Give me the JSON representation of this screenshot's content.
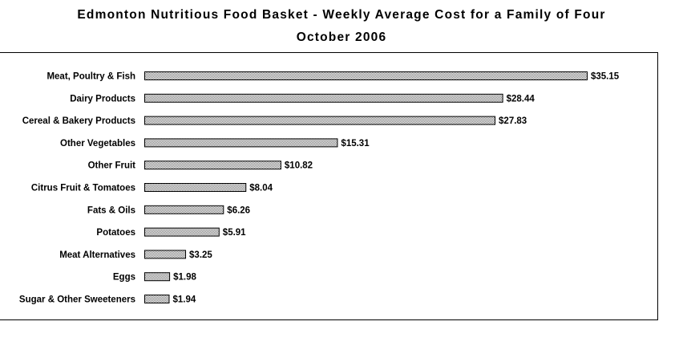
{
  "chart_data": {
    "type": "bar",
    "orientation": "horizontal",
    "title": "Edmonton Nutritious Food Basket - Weekly Average Cost for a Family of Four",
    "subtitle": "October 2006",
    "categories": [
      "Meat, Poultry & Fish",
      "Dairy Products",
      "Cereal & Bakery Products",
      "Other Vegetables",
      "Other Fruit",
      "Citrus Fruit & Tomatoes",
      "Fats & Oils",
      "Potatoes",
      "Meat Alternatives",
      "Eggs",
      "Sugar & Other Sweeteners"
    ],
    "values": [
      35.15,
      28.44,
      27.83,
      15.31,
      10.82,
      8.04,
      6.26,
      5.91,
      3.25,
      1.98,
      1.94
    ],
    "value_labels": [
      "$35.15",
      "$28.44",
      "$27.83",
      "$15.31",
      "$10.82",
      "$8.04",
      "$6.26",
      "$5.91",
      "$3.25",
      "$1.98",
      "$1.94"
    ],
    "xlim": [
      0,
      35.15
    ],
    "grid": false,
    "legend": "none",
    "bar_fill": "#c8c8c8",
    "bar_stroke": "#000000"
  }
}
